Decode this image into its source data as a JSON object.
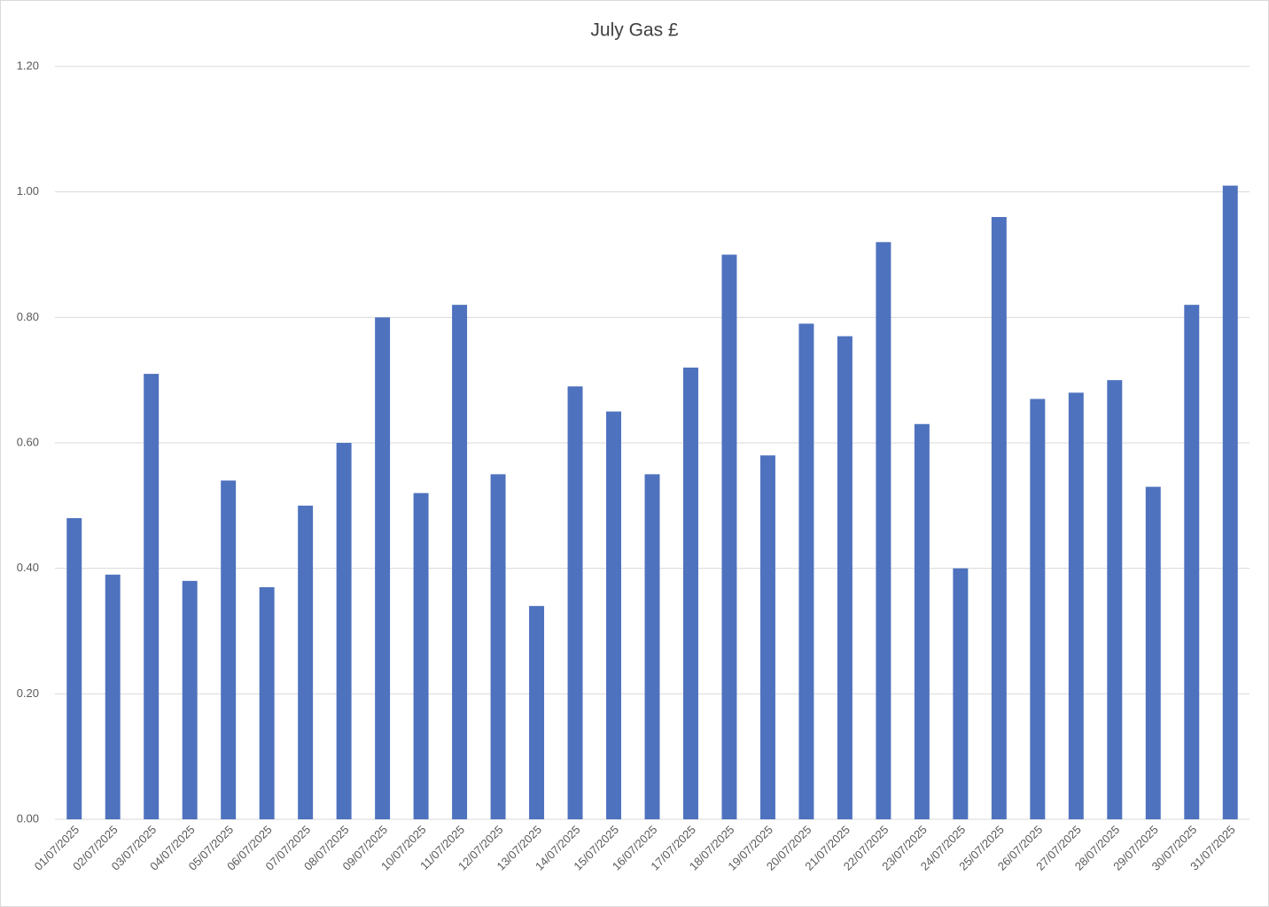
{
  "chart_data": {
    "type": "bar",
    "title": "July Gas £",
    "categories": [
      "01/07/2025",
      "02/07/2025",
      "03/07/2025",
      "04/07/2025",
      "05/07/2025",
      "06/07/2025",
      "07/07/2025",
      "08/07/2025",
      "09/07/2025",
      "10/07/2025",
      "11/07/2025",
      "12/07/2025",
      "13/07/2025",
      "14/07/2025",
      "15/07/2025",
      "16/07/2025",
      "17/07/2025",
      "18/07/2025",
      "19/07/2025",
      "20/07/2025",
      "21/07/2025",
      "22/07/2025",
      "23/07/2025",
      "24/07/2025",
      "25/07/2025",
      "26/07/2025",
      "27/07/2025",
      "28/07/2025",
      "29/07/2025",
      "30/07/2025",
      "31/07/2025"
    ],
    "values": [
      0.48,
      0.39,
      0.71,
      0.38,
      0.54,
      0.37,
      0.5,
      0.6,
      0.8,
      0.52,
      0.82,
      0.55,
      0.34,
      0.69,
      0.65,
      0.55,
      0.72,
      0.9,
      0.58,
      0.79,
      0.77,
      0.92,
      0.63,
      0.4,
      0.96,
      0.67,
      0.68,
      0.7,
      0.53,
      0.82,
      1.01
    ],
    "color": "#4e72be",
    "ylim": [
      0,
      1.2
    ],
    "yticks": [
      {
        "value": 0,
        "label": "0.00"
      },
      {
        "value": 0.2,
        "label": "0.20"
      },
      {
        "value": 0.4,
        "label": "0.40"
      },
      {
        "value": 0.6,
        "label": "0.60"
      },
      {
        "value": 0.8,
        "label": "0.80"
      },
      {
        "value": 1,
        "label": "1.00"
      },
      {
        "value": 1.2,
        "label": "1.20"
      }
    ],
    "grid": true
  }
}
